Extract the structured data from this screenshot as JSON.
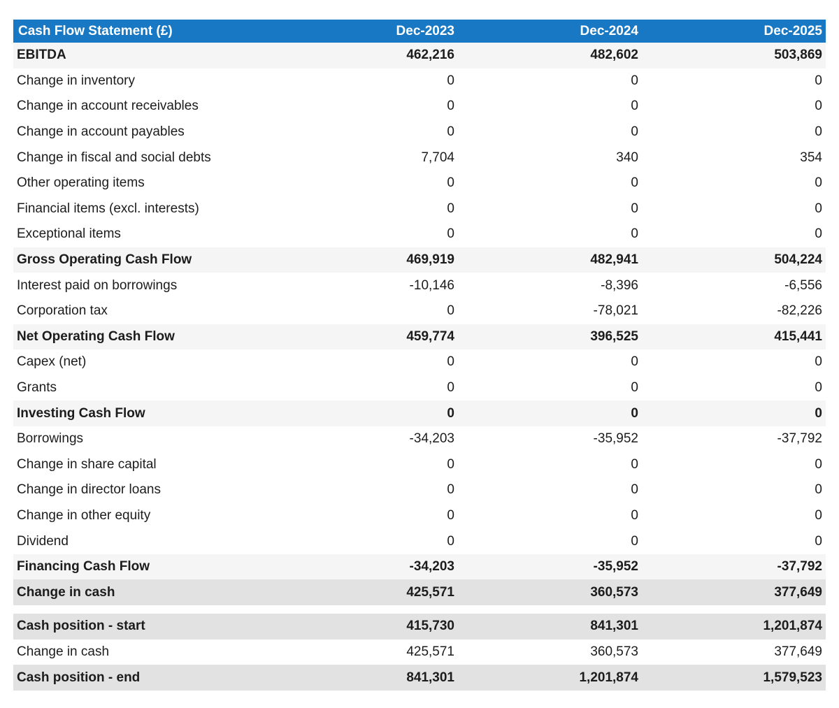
{
  "colors": {
    "header_bg": "#1878c3",
    "header_text": "#ffffff",
    "section_row_bg": "#f5f5f5",
    "total_row_bg": "#e2e2e2",
    "body_text": "#1c1c1c"
  },
  "table": {
    "header": {
      "label": "Cash Flow Statement (£)",
      "columns": [
        "Dec-2023",
        "Dec-2024",
        "Dec-2025"
      ]
    },
    "rows": [
      {
        "label": "EBITDA",
        "values": [
          "462,216",
          "482,602",
          "503,869"
        ],
        "style": "section"
      },
      {
        "label": "Change in inventory",
        "values": [
          "0",
          "0",
          "0"
        ],
        "style": "normal"
      },
      {
        "label": "Change in account receivables",
        "values": [
          "0",
          "0",
          "0"
        ],
        "style": "normal"
      },
      {
        "label": "Change in account payables",
        "values": [
          "0",
          "0",
          "0"
        ],
        "style": "normal"
      },
      {
        "label": "Change in fiscal and social debts",
        "values": [
          "7,704",
          "340",
          "354"
        ],
        "style": "normal"
      },
      {
        "label": "Other operating items",
        "values": [
          "0",
          "0",
          "0"
        ],
        "style": "normal"
      },
      {
        "label": "Financial items (excl. interests)",
        "values": [
          "0",
          "0",
          "0"
        ],
        "style": "normal"
      },
      {
        "label": "Exceptional items",
        "values": [
          "0",
          "0",
          "0"
        ],
        "style": "normal"
      },
      {
        "label": "Gross Operating Cash Flow",
        "values": [
          "469,919",
          "482,941",
          "504,224"
        ],
        "style": "section"
      },
      {
        "label": "Interest paid on borrowings",
        "values": [
          "-10,146",
          "-8,396",
          "-6,556"
        ],
        "style": "normal"
      },
      {
        "label": "Corporation tax",
        "values": [
          "0",
          "-78,021",
          "-82,226"
        ],
        "style": "normal"
      },
      {
        "label": "Net Operating Cash Flow",
        "values": [
          "459,774",
          "396,525",
          "415,441"
        ],
        "style": "section"
      },
      {
        "label": "Capex (net)",
        "values": [
          "0",
          "0",
          "0"
        ],
        "style": "normal"
      },
      {
        "label": "Grants",
        "values": [
          "0",
          "0",
          "0"
        ],
        "style": "normal"
      },
      {
        "label": "Investing Cash Flow",
        "values": [
          "0",
          "0",
          "0"
        ],
        "style": "section"
      },
      {
        "label": "Borrowings",
        "values": [
          "-34,203",
          "-35,952",
          "-37,792"
        ],
        "style": "normal"
      },
      {
        "label": "Change in share capital",
        "values": [
          "0",
          "0",
          "0"
        ],
        "style": "normal"
      },
      {
        "label": "Change in director loans",
        "values": [
          "0",
          "0",
          "0"
        ],
        "style": "normal"
      },
      {
        "label": "Change in other equity",
        "values": [
          "0",
          "0",
          "0"
        ],
        "style": "normal"
      },
      {
        "label": "Dividend",
        "values": [
          "0",
          "0",
          "0"
        ],
        "style": "normal"
      },
      {
        "label": "Financing Cash Flow",
        "values": [
          "-34,203",
          "-35,952",
          "-37,792"
        ],
        "style": "section"
      },
      {
        "label": "Change in cash",
        "values": [
          "425,571",
          "360,573",
          "377,649"
        ],
        "style": "total"
      },
      {
        "style": "spacer"
      },
      {
        "label": "Cash position - start",
        "values": [
          "415,730",
          "841,301",
          "1,201,874"
        ],
        "style": "total"
      },
      {
        "label": "Change in cash",
        "values": [
          "425,571",
          "360,573",
          "377,649"
        ],
        "style": "normal"
      },
      {
        "label": "Cash position - end",
        "values": [
          "841,301",
          "1,201,874",
          "1,579,523"
        ],
        "style": "total"
      }
    ]
  }
}
